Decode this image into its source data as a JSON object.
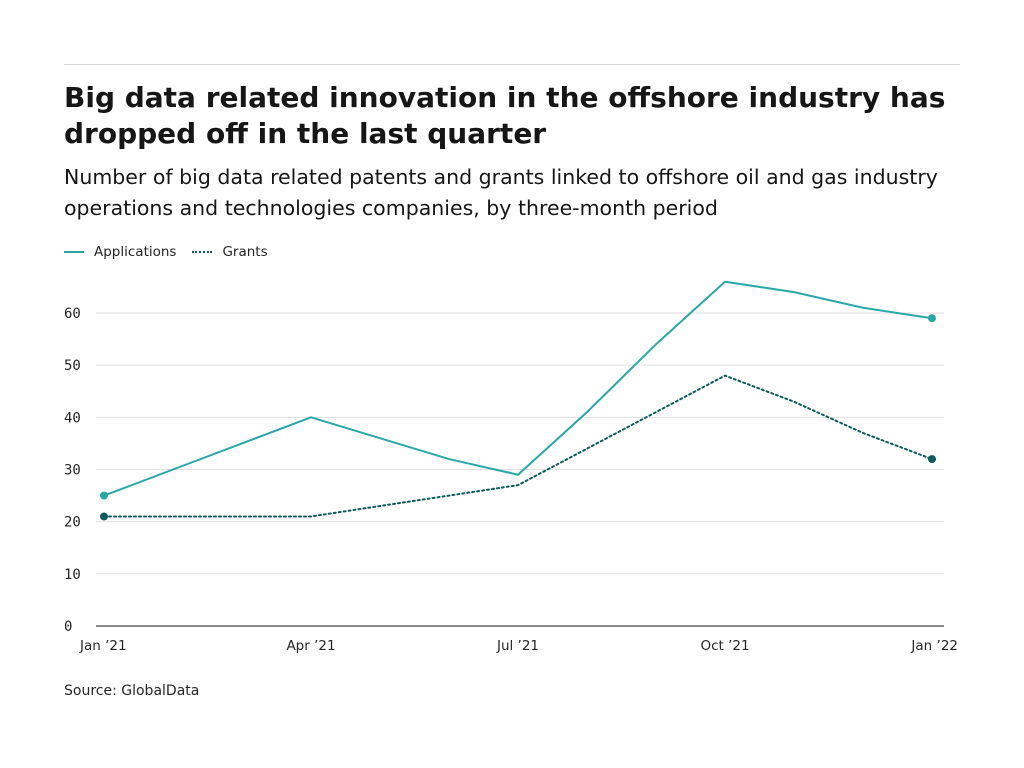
{
  "header": {
    "title": "Big data related innovation in the offshore industry has dropped off in the last quarter",
    "subtitle": "Number of big data related patents and grants linked to offshore oil and gas industry operations and technologies companies, by three-month period"
  },
  "legend": {
    "applications_label": "Applications",
    "grants_label": "Grants"
  },
  "footer": {
    "source": "Source: GlobalData"
  },
  "colors": {
    "applications": "#2aa8a8",
    "grants": "#0f5b5e",
    "gridline": "#e0e0e0",
    "axis": "#161616"
  },
  "chart_data": {
    "type": "line",
    "title": "Big data related innovation in the offshore industry has dropped off in the last quarter",
    "subtitle": "Number of big data related patents and grants linked to offshore oil and gas industry operations and technologies companies, by three-month period",
    "x": [
      "Jan '21",
      "Feb '21",
      "Mar '21",
      "Apr '21",
      "May '21",
      "Jun '21",
      "Jul '21",
      "Aug '21",
      "Sep '21",
      "Oct '21",
      "Nov '21",
      "Dec '21",
      "Jan '22"
    ],
    "x_ticks": [
      "Jan ’21",
      "Apr ’21",
      "Jul ’21",
      "Oct ’21",
      "Jan ’22"
    ],
    "series": [
      {
        "name": "Applications",
        "style": "solid",
        "values": [
          25,
          30,
          35,
          40,
          36,
          32,
          29,
          41,
          54,
          66,
          64,
          61,
          59
        ]
      },
      {
        "name": "Grants",
        "style": "dotted",
        "values": [
          21,
          21,
          21,
          21,
          23,
          25,
          27,
          34,
          41,
          48,
          43,
          37,
          32
        ]
      }
    ],
    "ylim": [
      0,
      60
    ],
    "yticks": [
      0,
      10,
      20,
      30,
      40,
      50,
      60
    ],
    "grid": true,
    "legend_position": "top-left",
    "xlabel": "",
    "ylabel": ""
  }
}
